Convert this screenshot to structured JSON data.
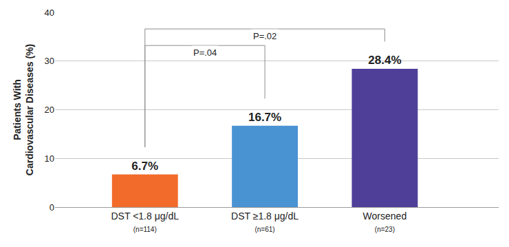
{
  "chart_data": {
    "type": "bar",
    "y_label": [
      "Patients With",
      "Cardiovascular Diseases (%)"
    ],
    "categories": [
      "DST <1.8 μg/dL",
      "DST ≥1.8 μg/dL",
      "Worsened"
    ],
    "category_notes": [
      "(n=114)",
      "(n=61)",
      "(n=23)"
    ],
    "values": [
      6.7,
      16.7,
      28.4
    ],
    "value_labels": [
      "6.7%",
      "16.7%",
      "28.4%"
    ],
    "colors": [
      "#f26b2a",
      "#4a93d3",
      "#4f3f99"
    ],
    "data_labels": true,
    "ylim": [
      0,
      40
    ],
    "yticks": [
      0,
      10,
      20,
      30,
      40
    ],
    "grid": true,
    "comparisons": [
      {
        "from": 0,
        "to": 1,
        "label": "P=.04"
      },
      {
        "from": 0,
        "to": 2,
        "label": "P=.02"
      }
    ]
  }
}
